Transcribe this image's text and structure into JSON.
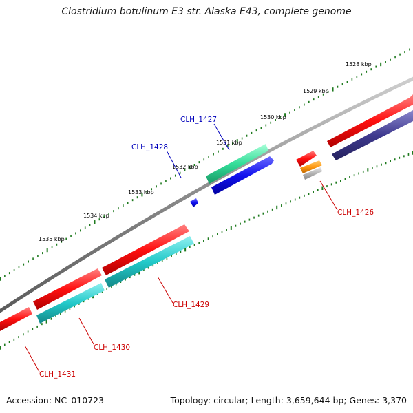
{
  "title": "Clostridium botulinum E3 str. Alaska E43, complete genome",
  "footer": {
    "accession": "Accession: NC_010723",
    "summary": "Topology: circular; Length: 3,659,644 bp; Genes: 3,370"
  },
  "colors": {
    "backbone": "#8a8a8a",
    "ticks": "#1e7a1e",
    "forward_cds": "#ff1414",
    "reverse_cds_teal": "#22c9c9",
    "highlight_green": "#33dd99",
    "highlight_blue": "#1111ee",
    "navy": "#3f3a8f",
    "orange": "#ff9910",
    "gray": "#b4b4b4",
    "label_red": "#cc0000",
    "label_blue": "#0000bb"
  },
  "ruler": {
    "labels": [
      "1528 kbp",
      "1529 kbp",
      "1530 kbp",
      "1531 kbp",
      "1532 kbp",
      "1533 kbp",
      "1534 kbp",
      "1535 kbp"
    ]
  },
  "gene_labels": [
    {
      "name": "clh-1427-label",
      "text": "CLH_1427",
      "color": "label_blue"
    },
    {
      "name": "clh-1428-label",
      "text": "CLH_1428",
      "color": "label_blue"
    },
    {
      "name": "clh-1426-label",
      "text": "CLH_1426",
      "color": "label_red"
    },
    {
      "name": "clh-1429-label",
      "text": "CLH_1429",
      "color": "label_red"
    },
    {
      "name": "clh-1430-label",
      "text": "CLH_1430",
      "color": "label_red"
    },
    {
      "name": "clh-1431-label",
      "text": "CLH_1431",
      "color": "label_red"
    }
  ]
}
